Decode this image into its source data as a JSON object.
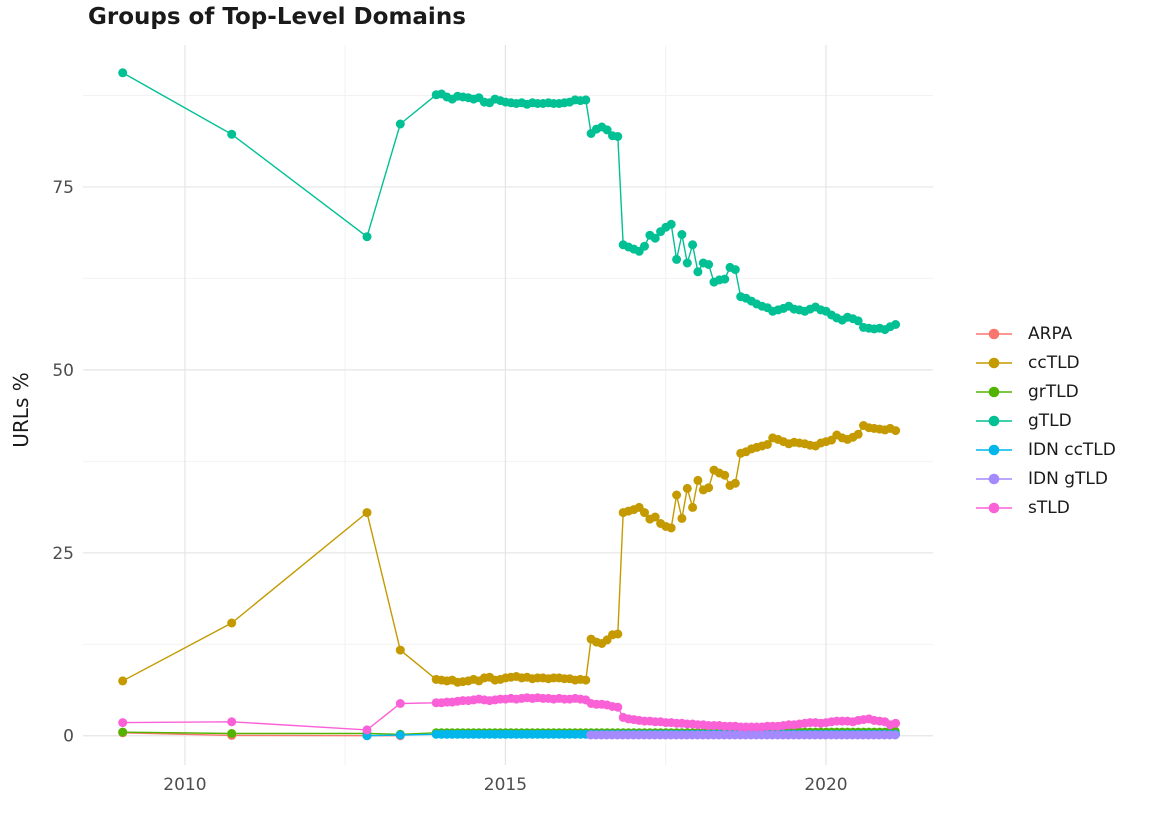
{
  "chart_data": {
    "type": "line",
    "title": "Groups of Top-Level Domains",
    "xlabel": "",
    "y_axis": {
      "label": "URLs %",
      "ticks": [
        {
          "value": 0,
          "label": "0"
        },
        {
          "value": 25,
          "label": "25"
        },
        {
          "value": 50,
          "label": "50"
        },
        {
          "value": 75,
          "label": "75"
        }
      ],
      "minor": [
        12.5,
        37.5,
        62.5,
        87.5
      ],
      "range": [
        -4,
        94.4
      ]
    },
    "x_axis": {
      "ticks": [
        {
          "value": 2010,
          "label": "2010"
        },
        {
          "value": 2015,
          "label": "2015"
        },
        {
          "value": 2020,
          "label": "2020"
        }
      ],
      "minor": [
        2012.5,
        2017.5
      ],
      "range": [
        2008.41,
        2021.67
      ]
    },
    "legend_position": "right",
    "grid": true,
    "series": [
      {
        "name": "ARPA",
        "color": "#F8766D",
        "parts": [
          {
            "xy": [
              [
                2009.03,
                0.4
              ],
              [
                2010.73,
                0.05
              ],
              [
                2012.84,
                0.0
              ],
              [
                2013.36,
                0.0
              ]
            ]
          }
        ]
      },
      {
        "name": "ccTLD",
        "color": "#C49A00",
        "parts": [
          {
            "xy": [
              [
                2009.03,
                7.5
              ],
              [
                2010.73,
                15.4
              ],
              [
                2012.84,
                30.5
              ],
              [
                2013.36,
                11.7
              ]
            ]
          },
          {
            "x0": 2013.92,
            "dx": 0.08333,
            "y": [
              7.7,
              7.6,
              7.5,
              7.6,
              7.3,
              7.4,
              7.5,
              7.7,
              7.5,
              7.9,
              8.0,
              7.6,
              7.7,
              7.9,
              8.0,
              8.1,
              7.9,
              8.0,
              7.8,
              7.9,
              7.9,
              7.8,
              7.9,
              7.9,
              7.8,
              7.8,
              7.6,
              7.7,
              7.6,
              13.2,
              12.8,
              12.6,
              13.1,
              13.8,
              13.9,
              30.5,
              30.7,
              30.9,
              31.2,
              30.5,
              29.6,
              29.9,
              29.0,
              28.6,
              28.4,
              32.9,
              29.7,
              33.8,
              31.2,
              34.9,
              33.6,
              33.9,
              36.3,
              35.9,
              35.6,
              34.2,
              34.5,
              38.6,
              38.8,
              39.2,
              39.4,
              39.6,
              39.8,
              40.7,
              40.5,
              40.2,
              39.9,
              40.1,
              40.0,
              39.9,
              39.7,
              39.6,
              40.0,
              40.2,
              40.4,
              41.1,
              40.7,
              40.5,
              40.8,
              41.2,
              42.4,
              42.1,
              42.0,
              41.9,
              41.8,
              42.0,
              41.7
            ]
          }
        ]
      },
      {
        "name": "grTLD",
        "color": "#53B400",
        "parts": [
          {
            "xy": [
              [
                2009.03,
                0.5
              ],
              [
                2010.73,
                0.3
              ],
              [
                2012.84,
                0.3
              ],
              [
                2013.36,
                0.2
              ]
            ]
          },
          {
            "x0": 2013.92,
            "dx": 0.08333,
            "n": 66,
            "const": 0.4
          },
          {
            "x0": 2019.42,
            "dx": 0.08333,
            "n": 19,
            "const": 0.5
          },
          {
            "xy": [
              [
                2021.0,
                0.6
              ],
              [
                2021.08,
                0.6
              ]
            ]
          }
        ]
      },
      {
        "name": "gTLD",
        "color": "#00C094",
        "parts": [
          {
            "xy": [
              [
                2009.03,
                90.6
              ],
              [
                2010.73,
                82.2
              ],
              [
                2012.84,
                68.2
              ],
              [
                2013.36,
                83.6
              ]
            ]
          },
          {
            "x0": 2013.92,
            "dx": 0.08333,
            "y": [
              87.6,
              87.7,
              87.3,
              87.0,
              87.4,
              87.3,
              87.2,
              87.0,
              87.2,
              86.6,
              86.5,
              87.0,
              86.8,
              86.6,
              86.5,
              86.4,
              86.5,
              86.3,
              86.5,
              86.4,
              86.4,
              86.5,
              86.4,
              86.4,
              86.5,
              86.6,
              86.9,
              86.8,
              86.9,
              82.3,
              82.9,
              83.2,
              82.8,
              82.0,
              81.9,
              67.1,
              66.8,
              66.5,
              66.2,
              66.9,
              68.4,
              68.0,
              68.9,
              69.5,
              69.9,
              65.1,
              68.5,
              64.6,
              67.1,
              63.4,
              64.6,
              64.4,
              62.0,
              62.3,
              62.4,
              64.0,
              63.7,
              60.0,
              59.8,
              59.4,
              59.0,
              58.7,
              58.5,
              58.0,
              58.2,
              58.4,
              58.7,
              58.3,
              58.2,
              58.0,
              58.3,
              58.6,
              58.2,
              58.0,
              57.5,
              57.1,
              56.8,
              57.2,
              57.0,
              56.7,
              55.8,
              55.7,
              55.6,
              55.7,
              55.5,
              55.9,
              56.2
            ]
          }
        ]
      },
      {
        "name": "IDN ccTLD",
        "color": "#00B6EB",
        "parts": [
          {
            "xy": [
              [
                2012.84,
                0.0
              ],
              [
                2013.36,
                0.1
              ]
            ]
          },
          {
            "x0": 2013.92,
            "dx": 0.08333,
            "n": 87,
            "const": 0.2
          }
        ]
      },
      {
        "name": "IDN gTLD",
        "color": "#A58AFF",
        "parts": [
          {
            "x0": 2016.33,
            "dx": 0.08333,
            "n": 58,
            "const": 0.1
          }
        ]
      },
      {
        "name": "sTLD",
        "color": "#FB61D7",
        "parts": [
          {
            "xy": [
              [
                2009.03,
                1.8
              ],
              [
                2010.73,
                1.9
              ],
              [
                2012.84,
                0.8
              ],
              [
                2013.36,
                4.4
              ]
            ]
          },
          {
            "x0": 2013.92,
            "dx": 0.08333,
            "y": [
              4.5,
              4.5,
              4.6,
              4.6,
              4.7,
              4.8,
              4.8,
              4.9,
              5.0,
              4.9,
              4.8,
              4.9,
              5.0,
              5.0,
              5.1,
              5.0,
              5.1,
              5.2,
              5.1,
              5.2,
              5.1,
              5.1,
              5.0,
              5.1,
              5.0,
              5.0,
              5.1,
              5.0,
              4.9,
              4.4,
              4.3,
              4.3,
              4.2,
              4.0,
              3.9,
              2.5,
              2.3,
              2.2,
              2.1,
              2.0,
              2.0,
              1.9,
              1.9,
              1.8,
              1.8,
              1.7,
              1.7,
              1.6,
              1.6,
              1.5,
              1.5,
              1.4,
              1.4,
              1.4,
              1.3,
              1.3,
              1.3,
              1.2,
              1.2,
              1.2,
              1.2,
              1.2,
              1.3,
              1.3,
              1.3,
              1.4,
              1.5,
              1.5,
              1.6,
              1.7,
              1.8,
              1.8,
              1.7,
              1.8,
              1.9,
              2.0,
              2.0,
              2.0,
              1.9,
              2.1,
              2.2,
              2.3,
              2.1,
              2.0,
              1.9,
              1.5,
              1.7
            ]
          }
        ]
      }
    ],
    "style": {
      "grid_major_color": "#e5e5e5",
      "grid_minor_color": "#f2f2f2",
      "tick_label_color": "#4d4d4d",
      "point_radius": 4.5,
      "line_width": 1.4
    }
  }
}
